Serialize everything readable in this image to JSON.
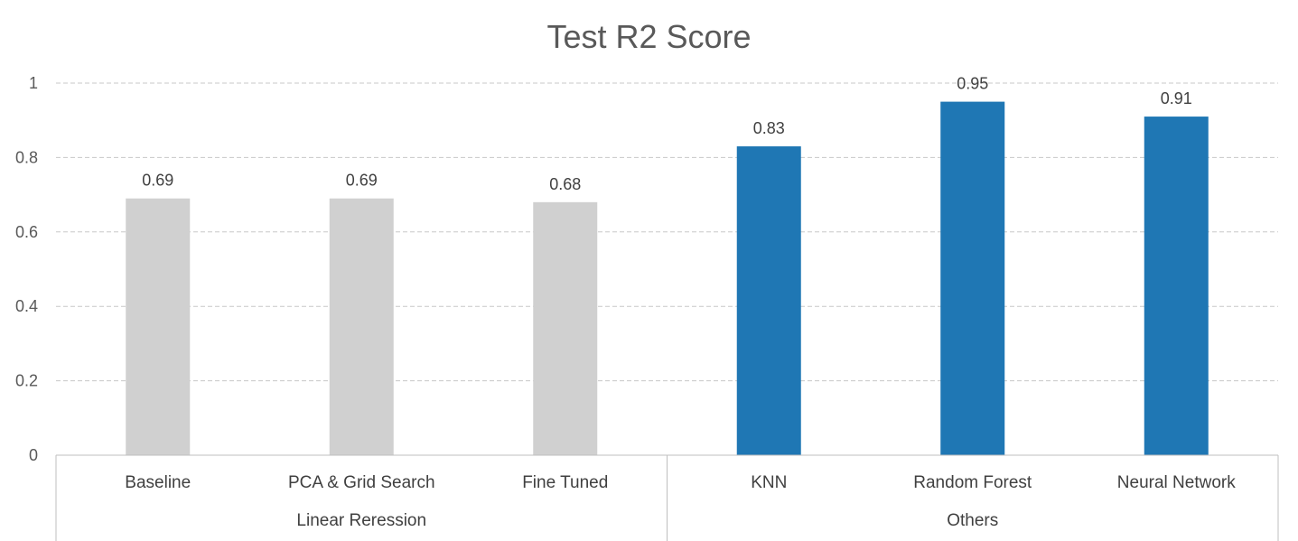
{
  "chart_data": {
    "type": "bar",
    "title": "Test R2 Score",
    "xlabel": "",
    "ylabel": "",
    "ylim": [
      0,
      1
    ],
    "yticks": [
      0,
      0.2,
      0.4,
      0.6,
      0.8,
      1
    ],
    "ytick_labels": [
      "0",
      "0.2",
      "0.4",
      "0.6",
      "0.8",
      "1"
    ],
    "grid": true,
    "legend": "none",
    "categories": [
      "Baseline",
      "PCA & Grid Search",
      "Fine Tuned",
      "KNN",
      "Random Forest",
      "Neural Network"
    ],
    "values": [
      0.69,
      0.69,
      0.68,
      0.83,
      0.95,
      0.91
    ],
    "data_labels": [
      "0.69",
      "0.69",
      "0.68",
      "0.83",
      "0.95",
      "0.91"
    ],
    "groups": [
      {
        "label": "Linear Reression",
        "start": 0,
        "end": 2,
        "color": "#d0d0d0"
      },
      {
        "label": "Others",
        "start": 3,
        "end": 5,
        "color": "#1f77b4"
      }
    ]
  }
}
